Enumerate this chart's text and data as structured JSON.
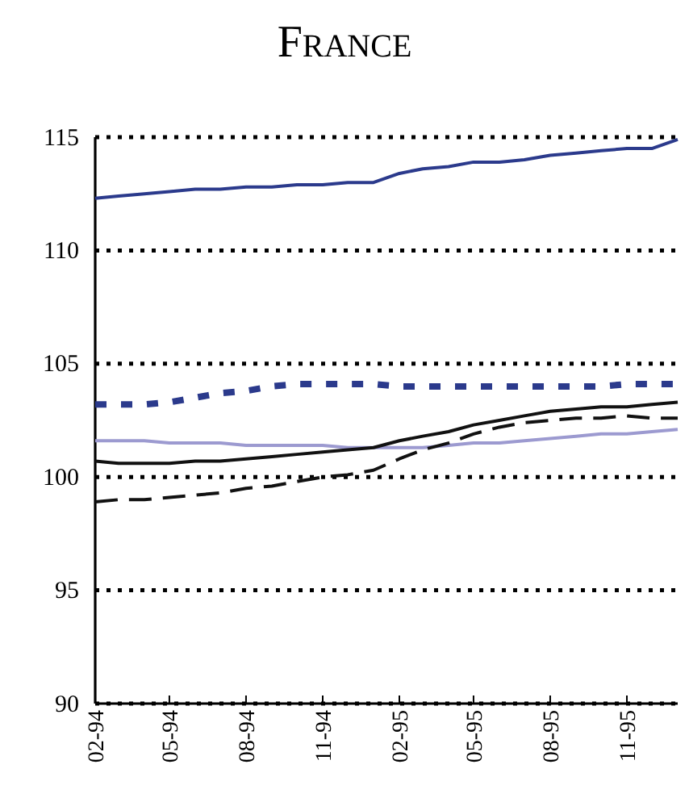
{
  "chart_data": {
    "type": "line",
    "title": "France",
    "x": [
      "1994-02",
      "1994-03",
      "1994-04",
      "1994-05",
      "1994-06",
      "1994-07",
      "1994-08",
      "1994-09",
      "1994-10",
      "1994-11",
      "1994-12",
      "1995-01",
      "1995-02",
      "1995-03",
      "1995-04",
      "1995-05",
      "1995-06",
      "1995-07",
      "1995-08",
      "1995-09",
      "1995-10",
      "1995-11",
      "1995-12",
      "1996-01"
    ],
    "xlim": [
      "1994-02",
      "1996-01"
    ],
    "xticks": [
      {
        "value": "1994-02",
        "label": "02-94"
      },
      {
        "value": "1994-05",
        "label": "05-94"
      },
      {
        "value": "1994-08",
        "label": "08-94"
      },
      {
        "value": "1994-11",
        "label": "11-94"
      },
      {
        "value": "1995-02",
        "label": "02-95"
      },
      {
        "value": "1995-05",
        "label": "05-95"
      },
      {
        "value": "1995-08",
        "label": "08-95"
      },
      {
        "value": "1995-11",
        "label": "11-95"
      }
    ],
    "ylim": [
      90,
      115
    ],
    "yticks": [
      90,
      95,
      100,
      105,
      110,
      115
    ],
    "grid": "y",
    "series": [
      {
        "color": "#2b3a8c",
        "line_style": "solid",
        "values": [
          112.3,
          112.4,
          112.5,
          112.6,
          112.7,
          112.7,
          112.8,
          112.8,
          112.9,
          112.9,
          113.0,
          113.0,
          113.4,
          113.6,
          113.7,
          113.9,
          113.9,
          114.0,
          114.2,
          114.3,
          114.4,
          114.5,
          114.5,
          114.9
        ]
      },
      {
        "color": "#2b3a8c",
        "line_style": "dotted",
        "values": [
          103.2,
          103.2,
          103.2,
          103.3,
          103.5,
          103.7,
          103.8,
          104.0,
          104.1,
          104.1,
          104.1,
          104.1,
          104.0,
          104.0,
          104.0,
          104.0,
          104.0,
          104.0,
          104.0,
          104.0,
          104.0,
          104.1,
          104.1,
          104.1
        ]
      },
      {
        "color": "#9c9ad0",
        "line_style": "solid",
        "values": [
          101.6,
          101.6,
          101.6,
          101.5,
          101.5,
          101.5,
          101.4,
          101.4,
          101.4,
          101.4,
          101.3,
          101.3,
          101.3,
          101.3,
          101.4,
          101.5,
          101.5,
          101.6,
          101.7,
          101.8,
          101.9,
          101.9,
          102.0,
          102.1
        ]
      },
      {
        "color": "#111111",
        "line_style": "solid",
        "values": [
          100.7,
          100.6,
          100.6,
          100.6,
          100.7,
          100.7,
          100.8,
          100.9,
          101.0,
          101.1,
          101.2,
          101.3,
          101.6,
          101.8,
          102.0,
          102.3,
          102.5,
          102.7,
          102.9,
          103.0,
          103.1,
          103.1,
          103.2,
          103.3
        ]
      },
      {
        "color": "#111111",
        "line_style": "dashed",
        "values": [
          98.9,
          99.0,
          99.0,
          99.1,
          99.2,
          99.3,
          99.5,
          99.6,
          99.8,
          100.0,
          100.1,
          100.3,
          100.8,
          101.2,
          101.5,
          101.9,
          102.2,
          102.4,
          102.5,
          102.6,
          102.6,
          102.7,
          102.6,
          102.6
        ]
      }
    ]
  }
}
